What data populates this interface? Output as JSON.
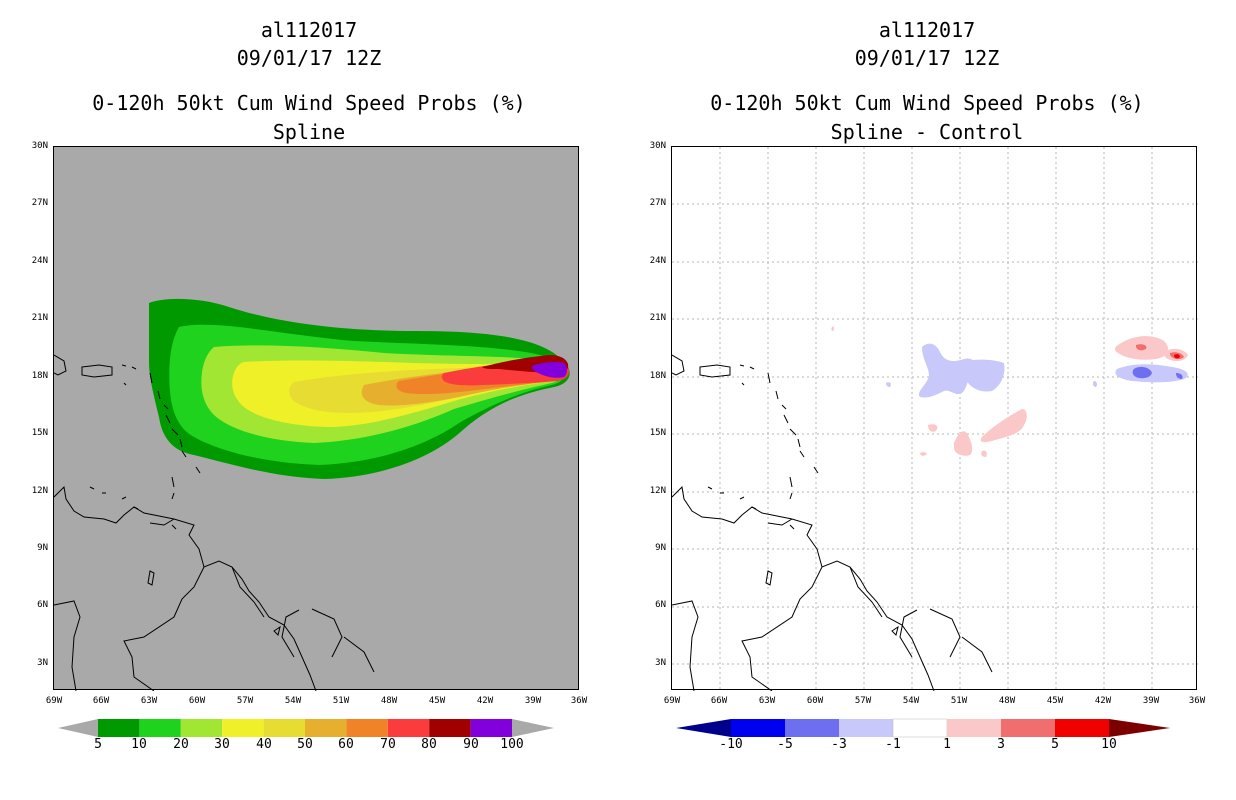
{
  "left": {
    "title_storm": "al112017",
    "title_time": "09/01/17 12Z",
    "title_product": "0-120h 50kt Cum Wind Speed Probs (%)",
    "title_sub": "Spline",
    "lat_labels": [
      "30N",
      "27N",
      "24N",
      "21N",
      "18N",
      "15N",
      "12N",
      "9N",
      "6N",
      "3N"
    ],
    "lon_labels": [
      "69W",
      "66W",
      "63W",
      "60W",
      "57W",
      "54W",
      "51W",
      "48W",
      "45W",
      "42W",
      "39W",
      "36W"
    ],
    "colorbar_labels": [
      "5",
      "10",
      "20",
      "30",
      "40",
      "50",
      "60",
      "70",
      "80",
      "90",
      "100"
    ],
    "colors": [
      "#009a00",
      "#1ed21e",
      "#a0e632",
      "#f0f028",
      "#e6dc32",
      "#e6af2d",
      "#f08228",
      "#fa3c3c",
      "#a00000",
      "#8200dc"
    ],
    "background": "#a9a9a9"
  },
  "right": {
    "title_storm": "al112017",
    "title_time": "09/01/17 12Z",
    "title_product": "0-120h 50kt Cum Wind Speed Probs (%)",
    "title_sub": "Spline - Control",
    "lat_labels": [
      "30N",
      "27N",
      "24N",
      "21N",
      "18N",
      "15N",
      "12N",
      "9N",
      "6N",
      "3N"
    ],
    "lon_labels": [
      "69W",
      "66W",
      "63W",
      "60W",
      "57W",
      "54W",
      "51W",
      "48W",
      "45W",
      "42W",
      "39W",
      "36W"
    ],
    "colorbar_labels": [
      "-10",
      "-5",
      "-3",
      "-1",
      "1",
      "3",
      "5",
      "10"
    ],
    "colors": [
      "#00008c",
      "#0000f0",
      "#6e6ef0",
      "#c8c8fa",
      "#ffffff",
      "#fac8c8",
      "#f06e6e",
      "#f00000",
      "#7d0000"
    ]
  }
}
